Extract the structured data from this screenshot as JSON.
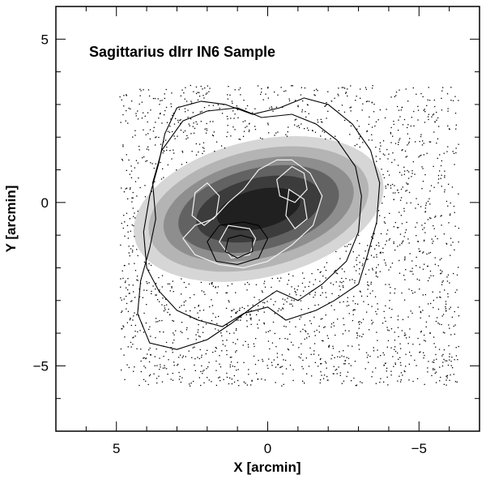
{
  "chart_data": {
    "type": "heatmap",
    "title": "Sagittarius dIrr IN6 Sample",
    "xlabel": "X [arcmin]",
    "ylabel": "Y [arcmin]",
    "xlim": [
      7,
      -7
    ],
    "ylim": [
      -7,
      6
    ],
    "xticks": [
      {
        "value": 5,
        "label": "5"
      },
      {
        "value": 0,
        "label": "0"
      },
      {
        "value": -5,
        "label": "−5"
      }
    ],
    "yticks": [
      {
        "value": 5,
        "label": "5"
      },
      {
        "value": 0,
        "label": "0"
      },
      {
        "value": -5,
        "label": "−5"
      }
    ],
    "grayscale_density_model": {
      "center": [
        0.3,
        -0.2
      ],
      "position_angle_deg": -12,
      "levels": [
        {
          "x_radius": 4.2,
          "y_radius": 2.1,
          "color": "#d6d6d6"
        },
        {
          "x_radius": 3.7,
          "y_radius": 1.8,
          "color": "#b4b4b4"
        },
        {
          "x_radius": 3.2,
          "y_radius": 1.5,
          "color": "#8e8e8e"
        },
        {
          "x_radius": 2.7,
          "y_radius": 1.25,
          "color": "#626262"
        },
        {
          "x_radius": 2.1,
          "y_radius": 0.95,
          "color": "#3c3c3c"
        },
        {
          "x_radius": 1.4,
          "y_radius": 0.6,
          "color": "#202020"
        }
      ]
    },
    "black_contours": [
      [
        [
          3.0,
          2.9
        ],
        [
          2.2,
          3.1
        ],
        [
          1.4,
          3.0
        ],
        [
          0.5,
          2.7
        ],
        [
          -0.4,
          2.9
        ],
        [
          -1.2,
          3.2
        ],
        [
          -2.0,
          3.0
        ],
        [
          -2.8,
          2.4
        ],
        [
          -3.4,
          1.6
        ],
        [
          -3.7,
          0.6
        ],
        [
          -3.6,
          -0.6
        ],
        [
          -3.3,
          -1.6
        ],
        [
          -3.0,
          -2.5
        ],
        [
          -2.2,
          -3.0
        ],
        [
          -1.6,
          -3.3
        ],
        [
          -0.6,
          -3.6
        ],
        [
          0.0,
          -3.2
        ],
        [
          0.8,
          -3.4
        ],
        [
          1.5,
          -3.8
        ],
        [
          2.3,
          -3.6
        ],
        [
          3.0,
          -3.3
        ],
        [
          3.6,
          -2.7
        ],
        [
          4.0,
          -2.0
        ],
        [
          4.1,
          -0.9
        ],
        [
          3.9,
          0.2
        ],
        [
          3.6,
          1.2
        ],
        [
          3.4,
          2.1
        ],
        [
          3.0,
          2.9
        ]
      ],
      [
        [
          2.8,
          2.5
        ],
        [
          2.0,
          2.8
        ],
        [
          1.0,
          2.9
        ],
        [
          0.2,
          2.6
        ],
        [
          -0.8,
          2.7
        ],
        [
          -1.6,
          2.4
        ],
        [
          -2.3,
          1.9
        ],
        [
          -2.9,
          1.1
        ],
        [
          -3.1,
          0.2
        ],
        [
          -3.0,
          -0.9
        ],
        [
          -2.6,
          -1.8
        ],
        [
          -1.8,
          -2.5
        ],
        [
          -1.0,
          -3.0
        ],
        [
          -0.3,
          -2.7
        ],
        [
          0.5,
          -3.2
        ],
        [
          1.2,
          -3.7
        ],
        [
          2.0,
          -4.2
        ],
        [
          3.0,
          -4.5
        ],
        [
          3.9,
          -4.3
        ],
        [
          4.3,
          -3.4
        ],
        [
          4.2,
          -2.4
        ],
        [
          3.9,
          -1.4
        ],
        [
          3.7,
          -0.5
        ],
        [
          3.8,
          0.6
        ],
        [
          3.5,
          1.6
        ],
        [
          2.8,
          2.5
        ]
      ],
      [
        [
          0.8,
          -0.6
        ],
        [
          1.6,
          -0.7
        ],
        [
          2.0,
          -1.2
        ],
        [
          1.7,
          -1.8
        ],
        [
          1.0,
          -1.9
        ],
        [
          0.3,
          -1.7
        ],
        [
          0.0,
          -1.1
        ],
        [
          0.3,
          -0.7
        ],
        [
          0.8,
          -0.6
        ]
      ],
      [
        [
          0.9,
          -1.0
        ],
        [
          1.3,
          -1.1
        ],
        [
          1.4,
          -1.5
        ],
        [
          1.0,
          -1.7
        ],
        [
          0.5,
          -1.5
        ],
        [
          0.5,
          -1.1
        ],
        [
          0.9,
          -1.0
        ]
      ]
    ],
    "white_contours": [
      [
        [
          -0.3,
          1.3
        ],
        [
          0.3,
          1.0
        ],
        [
          0.8,
          0.4
        ],
        [
          1.3,
          0.0
        ],
        [
          1.8,
          -0.5
        ],
        [
          2.4,
          -0.7
        ],
        [
          2.8,
          -1.1
        ],
        [
          2.4,
          -1.6
        ],
        [
          1.6,
          -1.9
        ],
        [
          0.8,
          -2.0
        ],
        [
          0.0,
          -1.8
        ],
        [
          -0.8,
          -1.3
        ],
        [
          -1.5,
          -0.7
        ],
        [
          -1.8,
          0.2
        ],
        [
          -1.4,
          0.9
        ],
        [
          -0.8,
          1.3
        ],
        [
          -0.3,
          1.3
        ]
      ],
      [
        [
          -0.8,
          1.1
        ],
        [
          -0.3,
          0.7
        ],
        [
          -0.4,
          0.2
        ],
        [
          -0.9,
          0.0
        ],
        [
          -1.3,
          0.4
        ],
        [
          -1.2,
          0.9
        ],
        [
          -0.8,
          1.1
        ]
      ],
      [
        [
          -0.7,
          0.4
        ],
        [
          -0.6,
          -0.4
        ],
        [
          -0.9,
          -0.8
        ],
        [
          -1.3,
          -0.5
        ],
        [
          -1.2,
          0.1
        ],
        [
          -0.7,
          0.4
        ]
      ],
      [
        [
          2.0,
          0.6
        ],
        [
          2.4,
          0.3
        ],
        [
          2.5,
          -0.4
        ],
        [
          2.1,
          -0.7
        ],
        [
          1.7,
          -0.4
        ],
        [
          1.6,
          0.2
        ],
        [
          2.0,
          0.6
        ]
      ],
      [
        [
          0.6,
          -0.8
        ],
        [
          1.3,
          -0.7
        ],
        [
          1.6,
          -1.2
        ],
        [
          1.2,
          -1.7
        ],
        [
          0.6,
          -1.6
        ],
        [
          0.4,
          -1.1
        ],
        [
          0.6,
          -0.8
        ]
      ]
    ],
    "point_field_model": {
      "count": 1900,
      "seed": 42,
      "x_range": [
        -6.3,
        4.9
      ],
      "y_range": [
        -5.6,
        3.6
      ],
      "exclude_inside_level": 0,
      "color": "#000000"
    }
  }
}
